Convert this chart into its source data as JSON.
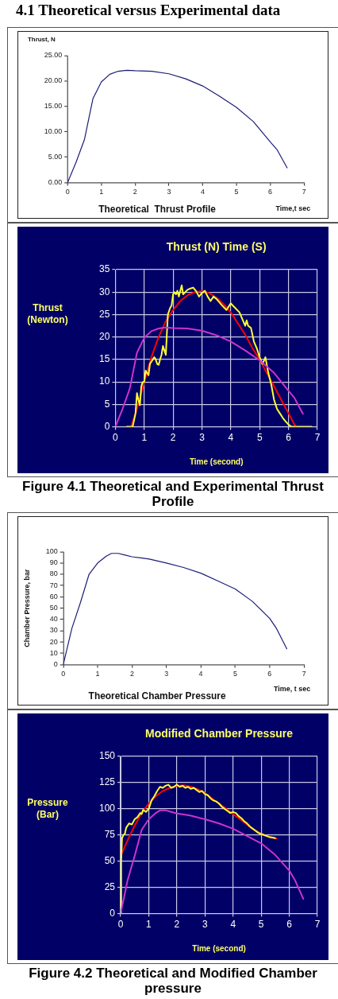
{
  "chart_data": [
    {
      "type": "line",
      "title": "Theoretical  Thrust Profile",
      "xlabel": "Time,t sec",
      "ylabel": "Thrust, N",
      "annotations": [
        "4.1 Theoretical versus Experimental data"
      ],
      "xlim": [
        0,
        7
      ],
      "xticks": [
        0,
        1,
        2,
        3,
        4,
        5,
        6,
        7
      ],
      "ylim": [
        0,
        25
      ],
      "yticks": [
        {
          "value": 0,
          "label": "0.00"
        },
        {
          "value": 5,
          "label": "5.00"
        },
        {
          "value": 10,
          "label": "10.00"
        },
        {
          "value": 15,
          "label": "15.00"
        },
        {
          "value": 20,
          "label": "20.00"
        },
        {
          "value": 25,
          "label": "25.00"
        }
      ],
      "grid": false,
      "legend": false,
      "marker": "none",
      "series": [
        {
          "color": "#1c1c78",
          "x": [
            0,
            0.25,
            0.5,
            0.75,
            1,
            1.25,
            1.5,
            1.75,
            2,
            2.5,
            3,
            3.5,
            4,
            4.5,
            5,
            5.5,
            6,
            6.2,
            6.5
          ],
          "values": [
            0,
            4,
            8.5,
            16.5,
            19.8,
            21.3,
            21.9,
            22.1,
            22,
            21.9,
            21.4,
            20.4,
            19,
            17,
            14.8,
            12,
            8,
            6.5,
            2.9
          ]
        }
      ]
    },
    {
      "type": "line",
      "title": "Thrust (N) Time (S)",
      "xlabel": "Time (second)",
      "ylabel": "Thrust (Newton)",
      "annotations": [
        "Figure 4.1 Theoretical and Experimental Thrust Profile"
      ],
      "xlim": [
        0,
        7
      ],
      "xticks": [
        0,
        1,
        2,
        3,
        4,
        5,
        6,
        7
      ],
      "ylim": [
        0,
        35
      ],
      "yticks": [
        0,
        5,
        10,
        15,
        20,
        25,
        30,
        35
      ],
      "grid": true,
      "legend": false,
      "marker": "none",
      "series": [
        {
          "color": "#cc33cc",
          "x": [
            0,
            0.25,
            0.5,
            0.75,
            1,
            1.25,
            1.5,
            1.75,
            2,
            2.5,
            3,
            3.5,
            4,
            4.5,
            5,
            5.5,
            6,
            6.2,
            6.5
          ],
          "values": [
            0,
            4,
            8.5,
            16.5,
            19.8,
            21.3,
            21.9,
            22.1,
            22,
            21.9,
            21.4,
            20.4,
            19,
            17,
            14.8,
            12,
            8,
            6.5,
            2.9
          ]
        },
        {
          "color": "#ffff33",
          "x": [
            0.4,
            0.6,
            0.7,
            0.75,
            0.8,
            0.85,
            0.9,
            0.95,
            1.0,
            1.05,
            1.1,
            1.15,
            1.2,
            1.3,
            1.35,
            1.4,
            1.45,
            1.5,
            1.55,
            1.6,
            1.65,
            1.7,
            1.75,
            1.78,
            1.82,
            1.9,
            1.95,
            2.0,
            2.05,
            2.1,
            2.15,
            2.2,
            2.3,
            2.35,
            2.5,
            2.6,
            2.7,
            2.8,
            2.9,
            3.0,
            3.1,
            3.2,
            3.3,
            3.4,
            3.5,
            3.7,
            3.85,
            4.0,
            4.1,
            4.3,
            4.4,
            4.5,
            4.55,
            4.6,
            4.7,
            4.8,
            4.9,
            5.0,
            5.1,
            5.2,
            5.3,
            5.4,
            5.5,
            5.6,
            5.7,
            5.8,
            5.9,
            6.0,
            6.1,
            6.3,
            6.8
          ],
          "values": [
            0,
            0,
            3,
            7.5,
            6,
            4.8,
            9,
            10,
            10,
            12.5,
            12,
            11.5,
            14,
            15,
            15.5,
            15,
            14,
            13.8,
            15,
            16,
            18,
            17,
            16,
            20,
            25,
            26.5,
            27,
            29.5,
            30,
            29.5,
            30.3,
            29,
            31.5,
            29.5,
            30.5,
            30.8,
            31,
            30.2,
            29,
            29.8,
            30.3,
            29,
            28,
            29,
            28.5,
            27,
            26,
            27.5,
            26.8,
            25.5,
            24,
            22.5,
            23.7,
            22.5,
            22,
            19,
            17.5,
            15.5,
            14,
            15.5,
            12,
            9.5,
            6,
            4,
            3,
            2,
            1.2,
            0.5,
            0,
            0,
            0
          ]
        },
        {
          "color": "#ff0000",
          "x": [
            0.55,
            0.75,
            1,
            1.25,
            1.5,
            1.75,
            2,
            2.25,
            2.5,
            2.75,
            3,
            3.25,
            3.5,
            3.75,
            4,
            4.25,
            4.5,
            4.75,
            5,
            5.25,
            5.5,
            5.75,
            6,
            6.25
          ],
          "values": [
            0,
            4,
            10,
            15.5,
            20,
            23.5,
            26,
            28,
            29.3,
            30,
            30.2,
            29.8,
            28.8,
            27.3,
            25.5,
            23,
            20.5,
            17.5,
            15,
            12,
            9,
            6,
            3,
            0
          ]
        }
      ]
    },
    {
      "type": "line",
      "title": "Theoretical Chamber Pressure",
      "xlabel": "Time, t sec",
      "ylabel": "Chamber Pressure, bar",
      "xlim": [
        0,
        7
      ],
      "xticks": [
        0,
        1,
        2,
        3,
        4,
        5,
        6,
        7
      ],
      "ylim": [
        0,
        100
      ],
      "yticks": [
        0,
        10,
        20,
        30,
        40,
        50,
        60,
        70,
        80,
        90,
        100
      ],
      "grid": false,
      "legend": false,
      "marker": "none",
      "series": [
        {
          "color": "#1c1c78",
          "x": [
            0,
            0.25,
            0.5,
            0.75,
            1,
            1.25,
            1.4,
            1.6,
            1.8,
            2,
            2.25,
            2.5,
            3,
            3.5,
            4,
            4.5,
            5,
            5.5,
            6,
            6.2,
            6.5
          ],
          "values": [
            0,
            32,
            55,
            80,
            90,
            96,
            98.5,
            98.5,
            97,
            95.5,
            94.5,
            93.5,
            90,
            86,
            81,
            74,
            67,
            56,
            41,
            32,
            14
          ]
        }
      ]
    },
    {
      "type": "line",
      "title": "Modified Chamber Pressure",
      "xlabel": "Time (second)",
      "ylabel": "Pressure (Bar)",
      "annotations": [
        "Figure 4.2 Theoretical and Modified Chamber pressure"
      ],
      "xlim": [
        0,
        7
      ],
      "xticks": [
        0,
        1,
        2,
        3,
        4,
        5,
        6,
        7
      ],
      "ylim": [
        0,
        150
      ],
      "yticks": [
        0,
        25,
        50,
        75,
        100,
        125,
        150
      ],
      "grid": true,
      "legend": false,
      "marker": "none",
      "series": [
        {
          "color": "#cc33cc",
          "x": [
            0,
            0.25,
            0.5,
            0.75,
            1,
            1.25,
            1.4,
            1.6,
            1.8,
            2,
            2.25,
            2.5,
            3,
            3.5,
            4,
            4.5,
            5,
            5.5,
            6,
            6.2,
            6.5
          ],
          "values": [
            0,
            32,
            55,
            80,
            90,
            96,
            98.5,
            98.5,
            97,
            95.5,
            94.5,
            93.5,
            90,
            86,
            81,
            74,
            67,
            56,
            41,
            32,
            14
          ]
        },
        {
          "color": "#ffff33",
          "x": [
            0,
            0.02,
            0.05,
            0.1,
            0.15,
            0.2,
            0.3,
            0.4,
            0.5,
            0.6,
            0.7,
            0.75,
            0.8,
            0.9,
            1.0,
            1.1,
            1.2,
            1.3,
            1.4,
            1.5,
            1.6,
            1.7,
            1.8,
            1.9,
            2.0,
            2.1,
            2.2,
            2.3,
            2.4,
            2.5,
            2.6,
            2.7,
            2.8,
            2.9,
            3.0,
            3.1,
            3.2,
            3.3,
            3.4,
            3.5,
            3.6,
            3.7,
            3.8,
            3.9,
            4.0,
            4.1,
            4.2,
            4.3,
            4.4,
            4.5,
            4.6,
            4.7,
            4.8,
            4.9,
            5.0,
            5.1,
            5.2,
            5.3,
            5.4,
            5.5
          ],
          "values": [
            0,
            50,
            72,
            75,
            76,
            82,
            86,
            85,
            90,
            92,
            96,
            95,
            99,
            97,
            100,
            108,
            112,
            117,
            121,
            120,
            122,
            123,
            120,
            121,
            123,
            121,
            122,
            120,
            121,
            119,
            120,
            118,
            116,
            117,
            114,
            113,
            110,
            108,
            107,
            105,
            102,
            100,
            98,
            96,
            97,
            96,
            93,
            91,
            88,
            86,
            83,
            81,
            79,
            77,
            76,
            75,
            74,
            73,
            72.5,
            72
          ]
        },
        {
          "color": "#ff0000",
          "x": [
            0,
            0.25,
            0.5,
            0.75,
            1,
            1.25,
            1.5,
            1.75,
            2,
            2.25,
            2.5,
            2.75,
            3,
            3.25,
            3.5,
            3.75,
            4,
            4.25,
            4.5,
            4.75,
            5,
            5.25,
            5.55
          ],
          "values": [
            55,
            70,
            84,
            96,
            105,
            112,
            117,
            120,
            122,
            122.5,
            121,
            118.5,
            115,
            110,
            105,
            100,
            95,
            90,
            85,
            80,
            76,
            73.5,
            71.5
          ]
        }
      ]
    }
  ]
}
